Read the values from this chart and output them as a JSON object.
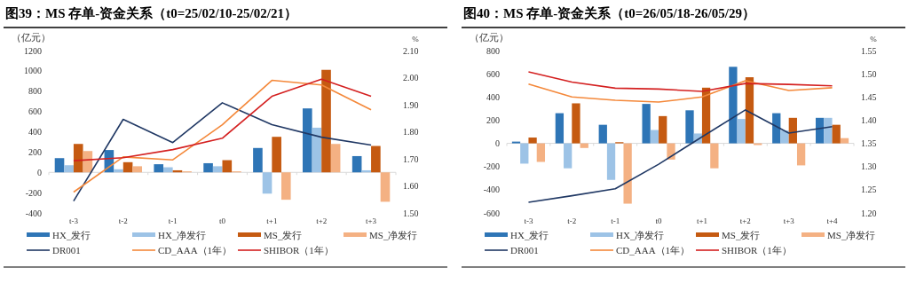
{
  "chart_data": [
    {
      "type": "bar",
      "title": "图39：MS 存单-资金关系（t0=25/02/10-25/02/21）",
      "ylabel": "（亿元）",
      "y2label": "%",
      "categories": [
        "t-3",
        "t-2",
        "t-1",
        "t0",
        "t+1",
        "t+2",
        "t+3"
      ],
      "ylim": [
        -400,
        1200
      ],
      "yticks": [
        -400,
        -200,
        0,
        200,
        400,
        600,
        800,
        1000,
        1200
      ],
      "y2lim": [
        1.5,
        2.1
      ],
      "y2ticks": [
        {
          "value": 1.5,
          "label": "1.50"
        },
        {
          "value": 1.6,
          "label": "1.60"
        },
        {
          "value": 1.7,
          "label": "1.70"
        },
        {
          "value": 1.8,
          "label": "1.80"
        },
        {
          "value": 1.9,
          "label": "1.90"
        },
        {
          "value": 2.0,
          "label": "2.00"
        },
        {
          "value": 2.1,
          "label": "2.10"
        }
      ],
      "legend": "bottom",
      "series": [
        {
          "name": "HX_发行",
          "color": "#2e75b6",
          "values": [
            140,
            220,
            80,
            90,
            240,
            630,
            160
          ]
        },
        {
          "name": "HX_净发行",
          "color": "#9dc3e6",
          "values": [
            70,
            30,
            50,
            60,
            -210,
            440,
            20
          ]
        },
        {
          "name": "MS_发行",
          "color": "#c55a11",
          "values": [
            280,
            100,
            20,
            120,
            350,
            1010,
            260
          ]
        },
        {
          "name": "MS_净发行",
          "color": "#f4b183",
          "values": [
            210,
            60,
            10,
            10,
            -270,
            280,
            -290
          ]
        },
        {
          "name": "DR001",
          "type": "line",
          "axis": "y2",
          "color": "#203864",
          "values": [
            1.544,
            1.846,
            1.76,
            1.907,
            1.826,
            1.78,
            1.751
          ]
        },
        {
          "name": "CD_AAA（1年）",
          "type": "line",
          "axis": "y2",
          "color": "#f4883a",
          "values": [
            1.577,
            1.707,
            1.696,
            1.826,
            1.99,
            1.973,
            1.881
          ]
        },
        {
          "name": "SHIBOR（1年）",
          "type": "line",
          "axis": "y2",
          "color": "#d42020",
          "values": [
            1.693,
            1.704,
            1.734,
            1.776,
            1.931,
            1.994,
            1.931
          ]
        }
      ]
    },
    {
      "type": "bar",
      "title": "图40：MS 存单-资金关系（t0=26/05/18-26/05/29）",
      "ylabel": "（亿元）",
      "y2label": "%",
      "categories": [
        "t-3",
        "t-2",
        "t-1",
        "t0",
        "t+1",
        "t+2",
        "t+3",
        "t+4"
      ],
      "ylim": [
        -600,
        800
      ],
      "yticks": [
        -600,
        -400,
        -200,
        0,
        200,
        400,
        600,
        800
      ],
      "y2lim": [
        1.2,
        1.55
      ],
      "y2ticks": [
        {
          "value": 1.2,
          "label": "1.20"
        },
        {
          "value": 1.25,
          "label": "1.25"
        },
        {
          "value": 1.3,
          "label": "1.30"
        },
        {
          "value": 1.35,
          "label": "1.35"
        },
        {
          "value": 1.4,
          "label": "1.40"
        },
        {
          "value": 1.45,
          "label": "1.45"
        },
        {
          "value": 1.5,
          "label": "1.50"
        },
        {
          "value": 1.55,
          "label": "1.55"
        }
      ],
      "legend": "bottom",
      "series": [
        {
          "name": "HX_发行",
          "color": "#2e75b6",
          "values": [
            15,
            260,
            160,
            340,
            285,
            660,
            260,
            220
          ]
        },
        {
          "name": "HX_净发行",
          "color": "#9dc3e6",
          "values": [
            -175,
            -215,
            -315,
            115,
            85,
            210,
            110,
            220
          ]
        },
        {
          "name": "MS_发行",
          "color": "#c55a11",
          "values": [
            50,
            345,
            10,
            235,
            480,
            570,
            220,
            160
          ]
        },
        {
          "name": "MS_净发行",
          "color": "#f4b183",
          "values": [
            -160,
            -40,
            -520,
            -140,
            -215,
            -15,
            -190,
            45
          ]
        },
        {
          "name": "DR001",
          "type": "line",
          "axis": "y2",
          "color": "#203864",
          "values": [
            1.223,
            1.237,
            1.252,
            1.305,
            1.364,
            1.422,
            1.372,
            1.386
          ]
        },
        {
          "name": "CD_AAA（1年）",
          "type": "line",
          "axis": "y2",
          "color": "#f4883a",
          "values": [
            1.478,
            1.45,
            1.443,
            1.439,
            1.45,
            1.485,
            1.464,
            1.47
          ]
        },
        {
          "name": "SHIBOR（1年）",
          "type": "line",
          "axis": "y2",
          "color": "#d42020",
          "values": [
            1.504,
            1.482,
            1.469,
            1.467,
            1.462,
            1.479,
            1.477,
            1.474
          ]
        }
      ]
    }
  ]
}
